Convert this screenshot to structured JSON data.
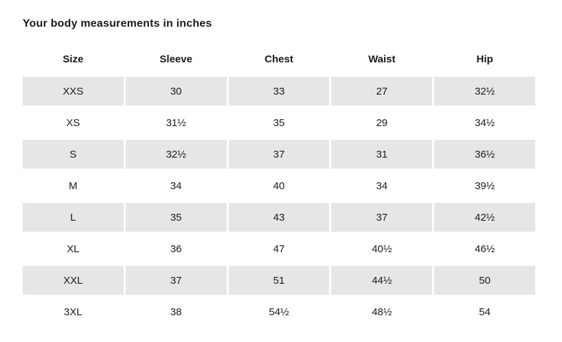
{
  "page": {
    "title": "Your body measurements in inches"
  },
  "chart_data": {
    "type": "table",
    "title": "Your body measurements in inches",
    "unit": "inches",
    "columns": [
      "Size",
      "Sleeve",
      "Chest",
      "Waist",
      "Hip"
    ],
    "rows": [
      [
        "XXS",
        "30",
        "33",
        "27",
        "32½"
      ],
      [
        "XS",
        "31½",
        "35",
        "29",
        "34½"
      ],
      [
        "S",
        "32½",
        "37",
        "31",
        "36½"
      ],
      [
        "M",
        "34",
        "40",
        "34",
        "39½"
      ],
      [
        "L",
        "35",
        "43",
        "37",
        "42½"
      ],
      [
        "XL",
        "36",
        "47",
        "40½",
        "46½"
      ],
      [
        "XXL",
        "37",
        "51",
        "44½",
        "50"
      ],
      [
        "3XL",
        "38",
        "54½",
        "48½",
        "54"
      ]
    ],
    "layout": {
      "grid": "off",
      "zebra": "alternating rows shaded, starting with first data row",
      "zebra_color": "#e6e6e6",
      "text_color": "#1a1a1a",
      "cell_alignment": "center"
    }
  }
}
